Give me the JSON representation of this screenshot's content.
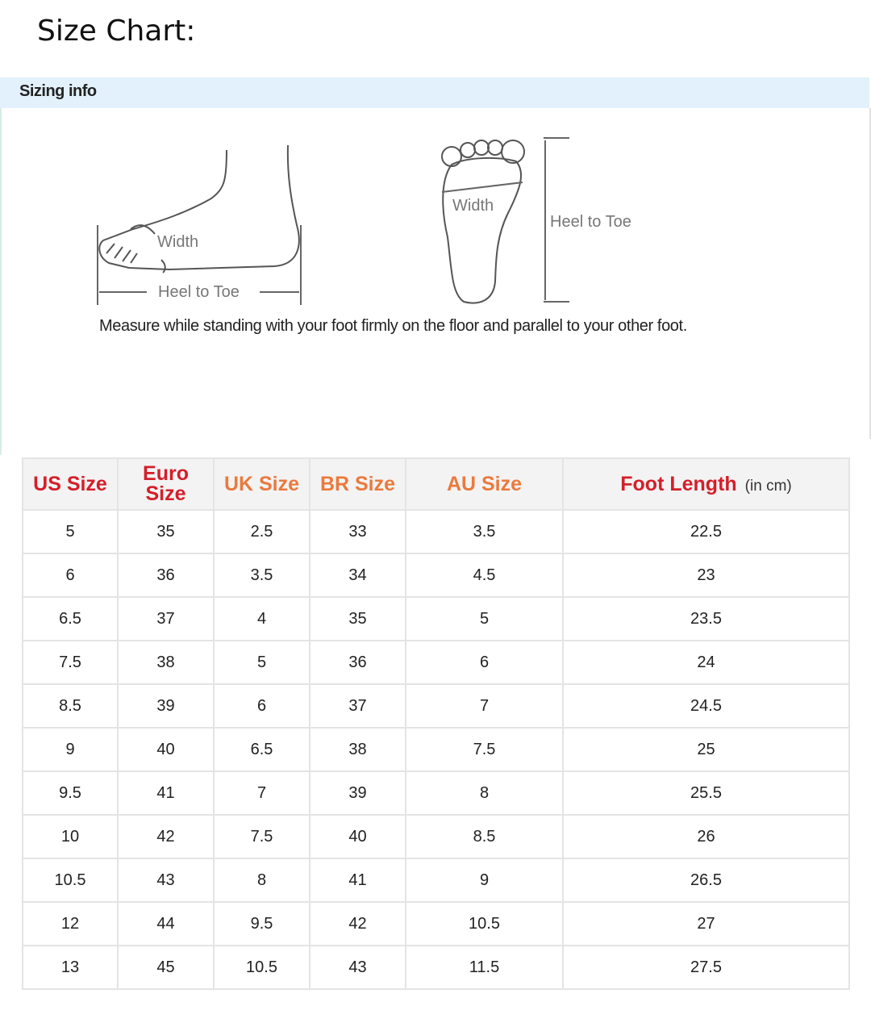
{
  "title": "Size Chart:",
  "sizing_info": "Sizing info",
  "diagram": {
    "side_width": "Width",
    "side_length": "Heel to Toe",
    "sole_width": "Width",
    "sole_length": "Heel to Toe"
  },
  "note": "Measure while standing with your foot firmly on the floor and parallel to your other foot.",
  "colors": {
    "header_red": "#d41f2a",
    "header_orange": "#ea7a3e",
    "info_bar": "#e2f1fb"
  },
  "table": {
    "headers": [
      {
        "label": "US Size"
      },
      {
        "label": "Euro Size"
      },
      {
        "label": "UK Size"
      },
      {
        "label": "BR Size"
      },
      {
        "label": "AU Size"
      },
      {
        "label": "Foot Length",
        "unit": "(in cm)"
      }
    ],
    "rows": [
      [
        "5",
        "35",
        "2.5",
        "33",
        "3.5",
        "22.5"
      ],
      [
        "6",
        "36",
        "3.5",
        "34",
        "4.5",
        "23"
      ],
      [
        "6.5",
        "37",
        "4",
        "35",
        "5",
        "23.5"
      ],
      [
        "7.5",
        "38",
        "5",
        "36",
        "6",
        "24"
      ],
      [
        "8.5",
        "39",
        "6",
        "37",
        "7",
        "24.5"
      ],
      [
        "9",
        "40",
        "6.5",
        "38",
        "7.5",
        "25"
      ],
      [
        "9.5",
        "41",
        "7",
        "39",
        "8",
        "25.5"
      ],
      [
        "10",
        "42",
        "7.5",
        "40",
        "8.5",
        "26"
      ],
      [
        "10.5",
        "43",
        "8",
        "41",
        "9",
        "26.5"
      ],
      [
        "12",
        "44",
        "9.5",
        "42",
        "10.5",
        "27"
      ],
      [
        "13",
        "45",
        "10.5",
        "43",
        "11.5",
        "27.5"
      ]
    ]
  }
}
